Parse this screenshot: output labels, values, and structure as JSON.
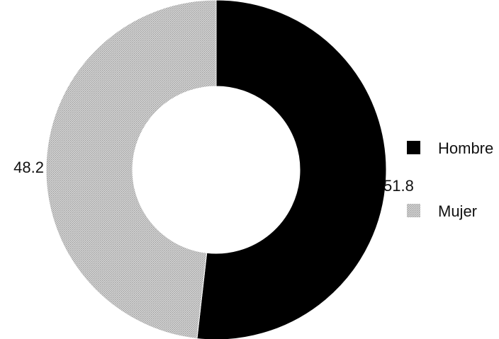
{
  "chart_data": {
    "type": "pie",
    "variant": "donut",
    "categories": [
      "Hombre",
      "Mujer"
    ],
    "values": [
      51.8,
      48.2
    ],
    "colors": [
      "#000000",
      "#c8c8c8"
    ],
    "data_labels": [
      "51.8",
      "48.2"
    ],
    "legend": {
      "placement": "right",
      "entries": [
        "Hombre",
        "Mujer"
      ]
    },
    "title": "",
    "start_angle_deg": 0,
    "direction": "clockwise"
  }
}
